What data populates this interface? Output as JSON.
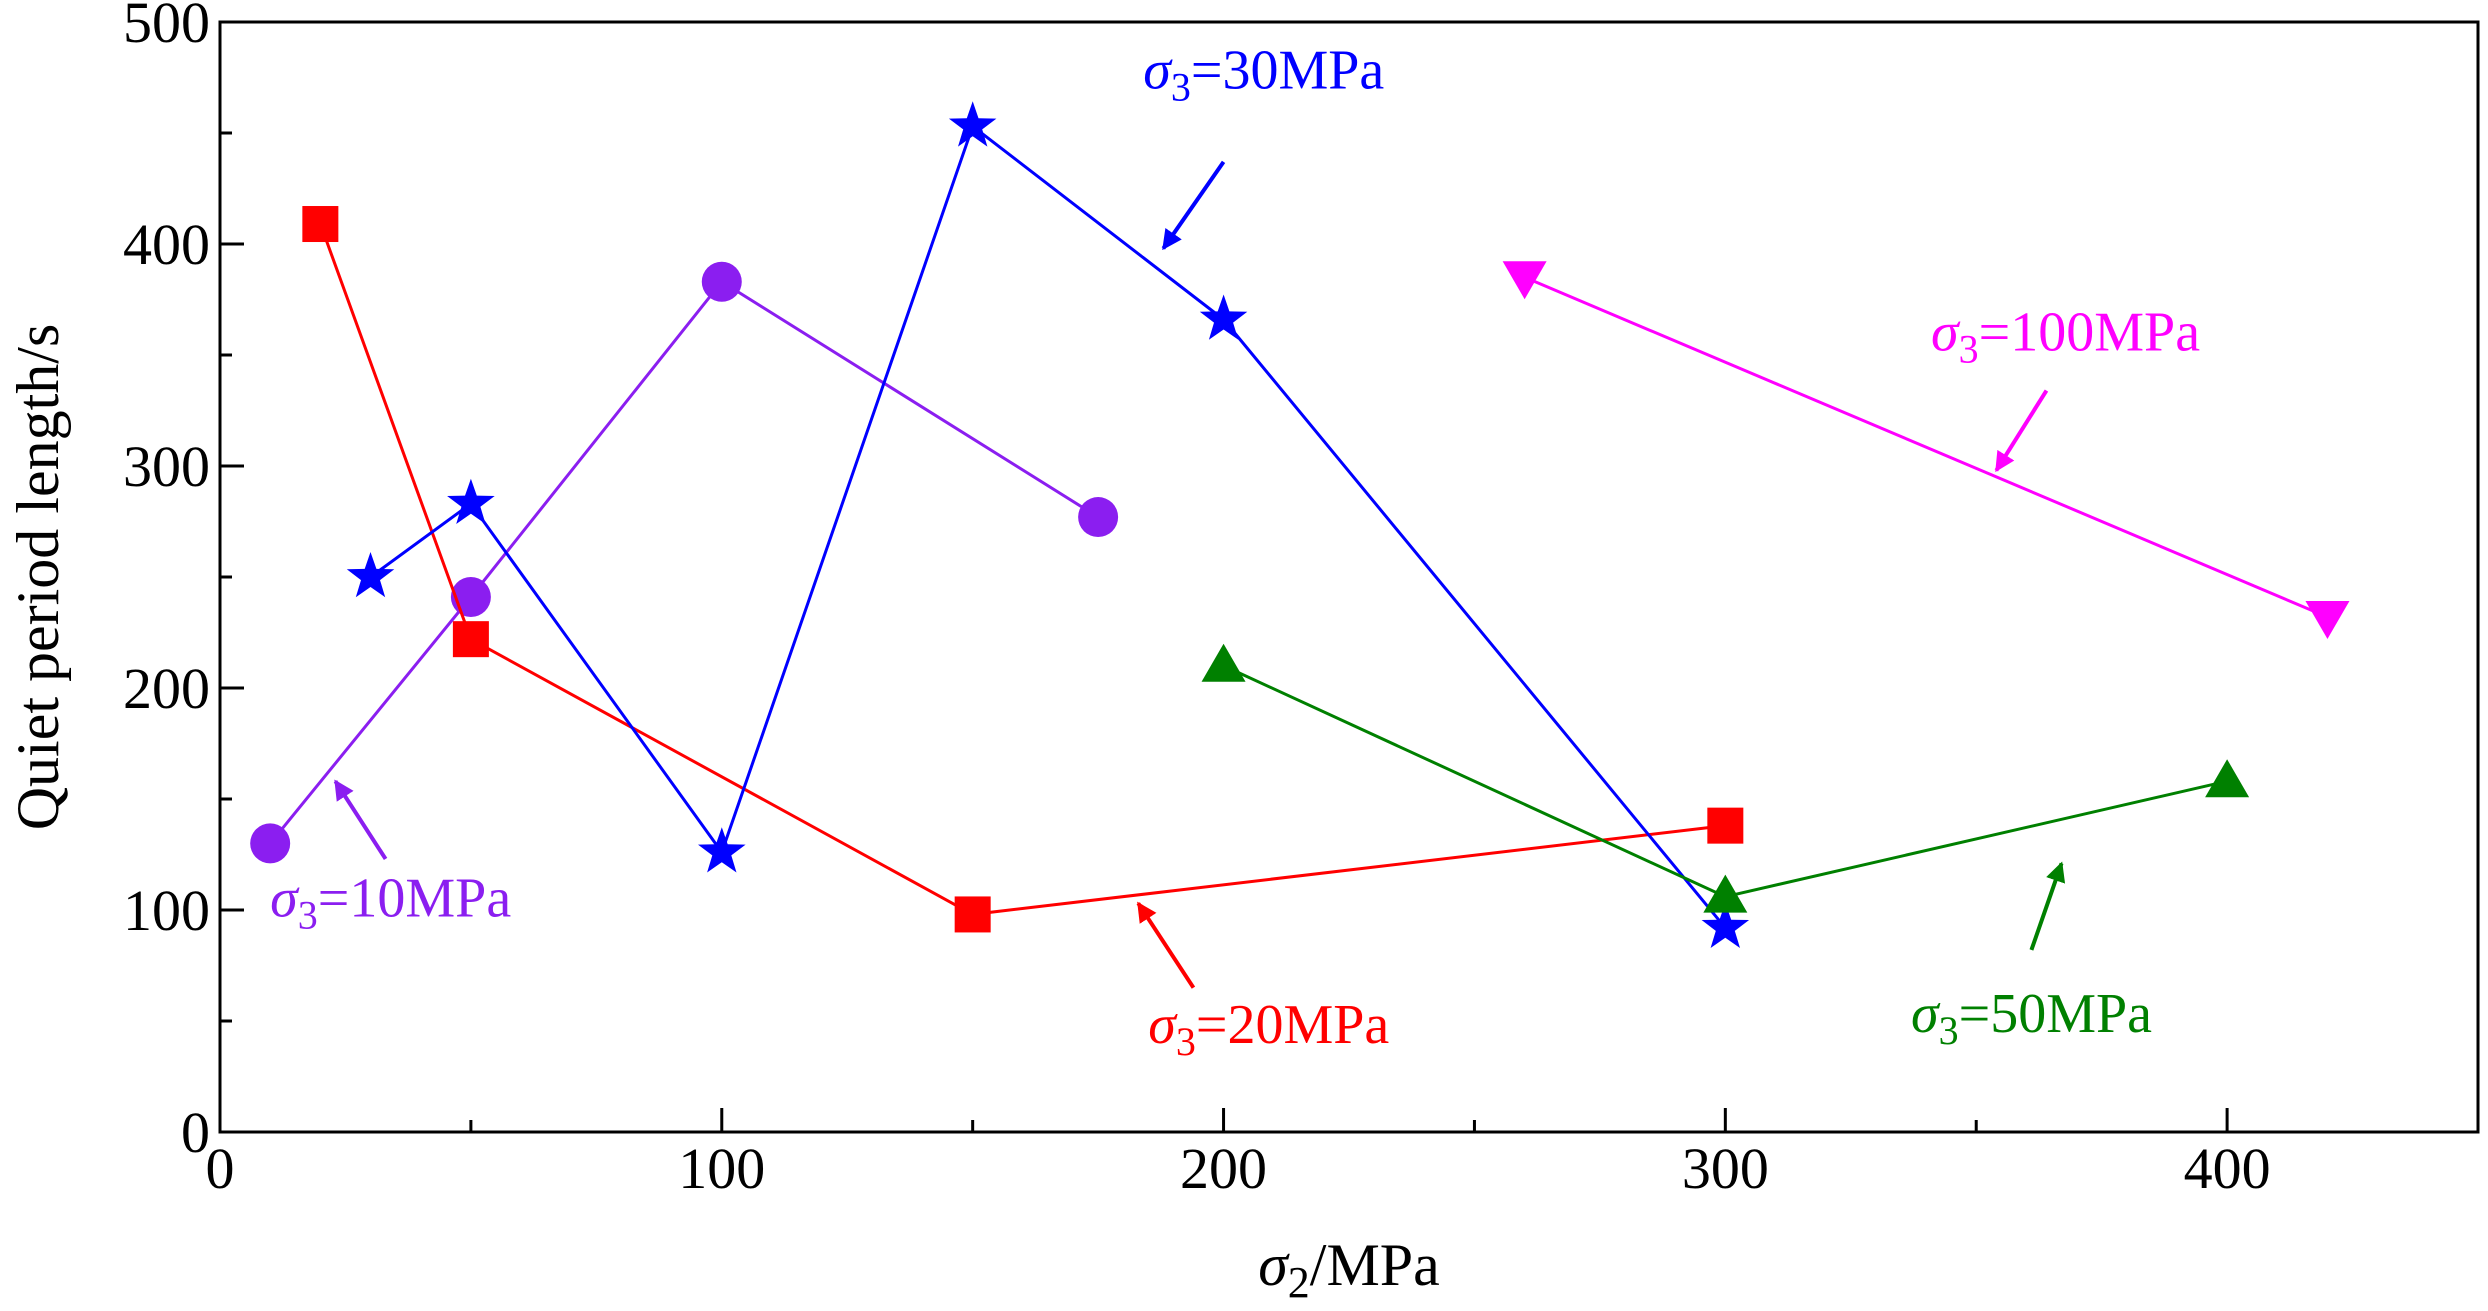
{
  "chart_data": {
    "type": "line",
    "xlabel_symbol": "σ",
    "xlabel_sub": "2",
    "xlabel_unit": "/MPa",
    "ylabel": "Quiet period length/s",
    "xlim": [
      0,
      450
    ],
    "ylim": [
      0,
      500
    ],
    "x_ticks": [
      0,
      100,
      200,
      300,
      400
    ],
    "x_tick_labels": [
      "0",
      "100",
      "200",
      "300",
      "400"
    ],
    "y_ticks": [
      0,
      100,
      200,
      300,
      400,
      500
    ],
    "y_tick_labels": [
      "0",
      "100",
      "200",
      "300",
      "400",
      "500"
    ],
    "series": [
      {
        "name": "σ3=10MPa",
        "label_symbol": "σ",
        "label_sub": "3",
        "label_value": "=10MPa",
        "color": "#8b1ef0",
        "marker": "circle",
        "x": [
          10,
          50,
          100,
          175
        ],
        "y": [
          130,
          241,
          383,
          277
        ]
      },
      {
        "name": "σ3=20MPa",
        "label_symbol": "σ",
        "label_sub": "3",
        "label_value": "=20MPa",
        "color": "#ff0000",
        "marker": "square",
        "x": [
          20,
          50,
          150,
          300
        ],
        "y": [
          409,
          222,
          98,
          138
        ]
      },
      {
        "name": "σ3=30MPa",
        "label_symbol": "σ",
        "label_sub": "3",
        "label_value": "=30MPa",
        "color": "#0000ff",
        "marker": "star",
        "x": [
          30,
          50,
          100,
          150,
          200,
          300
        ],
        "y": [
          250,
          283,
          126,
          453,
          366,
          92
        ]
      },
      {
        "name": "σ3=50MPa",
        "label_symbol": "σ",
        "label_sub": "3",
        "label_value": "=50MPa",
        "color": "#008000",
        "marker": "triangle-up",
        "x": [
          200,
          300,
          400
        ],
        "y": [
          210,
          106,
          158
        ]
      },
      {
        "name": "σ3=100MPa",
        "label_symbol": "σ",
        "label_sub": "3",
        "label_value": "=100MPa",
        "color": "#ff00ff",
        "marker": "triangle-down",
        "x": [
          260,
          420
        ],
        "y": [
          385,
          232
        ]
      }
    ],
    "annotations": [
      {
        "series": 0,
        "text_at": [
          10,
          97
        ],
        "arrow_from": [
          33,
          123
        ],
        "arrow_to": [
          23,
          158
        ]
      },
      {
        "series": 1,
        "text_at": [
          185,
          40
        ],
        "arrow_from": [
          194,
          65
        ],
        "arrow_to": [
          183,
          103
        ]
      },
      {
        "series": 2,
        "text_at": [
          184,
          470
        ],
        "arrow_from": [
          200,
          437
        ],
        "arrow_to": [
          188,
          398
        ]
      },
      {
        "series": 3,
        "text_at": [
          337,
          45
        ],
        "arrow_from": [
          361,
          82
        ],
        "arrow_to": [
          367,
          121
        ]
      },
      {
        "series": 4,
        "text_at": [
          341,
          352
        ],
        "arrow_from": [
          364,
          334
        ],
        "arrow_to": [
          354,
          298
        ]
      }
    ]
  }
}
